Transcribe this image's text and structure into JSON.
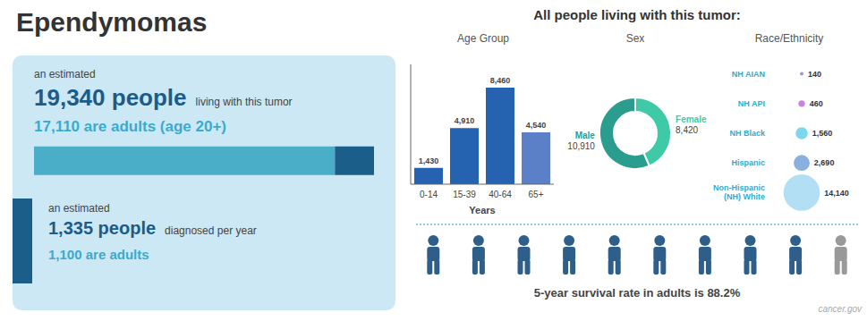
{
  "chart_data": [
    {
      "type": "bar",
      "title": "Ependymomas",
      "orientation": "horizontal",
      "stacked": true,
      "categories": [
        null
      ],
      "series": [
        {
          "values": [
            0.885
          ],
          "color": "#4aaec9"
        },
        {
          "values": [
            0.115
          ],
          "color": "#1b5e8a"
        }
      ],
      "xlim": [
        0,
        1
      ],
      "tick_labels": false,
      "annotations": [
        "an estimated",
        "19,340 people",
        "living with this tumor",
        "17,110 are adults (age 20+)",
        "an estimated",
        "1,335 people",
        "diagnosed per year",
        "1,100 are adults"
      ]
    },
    {
      "type": "bar",
      "title": "Age Group",
      "subtitle": "All people living with this tumor:",
      "categories": [
        "0-14",
        "15-39",
        "40-64",
        "65+"
      ],
      "values": [
        1430,
        4910,
        8460,
        4540
      ],
      "value_labels": [
        "1,430",
        "4,910",
        "8,460",
        "4,540"
      ],
      "colors": [
        "#2563b0",
        "#2563b0",
        "#2563b0",
        "#5b80c8"
      ],
      "xlabel": "Years",
      "ylim": [
        0,
        10500
      ],
      "data_labels": true,
      "tick_labels": "x"
    },
    {
      "type": "pie",
      "title": "Sex",
      "categories": [
        "Female",
        "Male"
      ],
      "values": [
        8420,
        10910
      ],
      "value_labels": [
        "8,420",
        "10,910"
      ],
      "colors": [
        "#3ec9a7",
        "#2a9d8f"
      ],
      "data_labels": true
    },
    {
      "type": "bubble",
      "title": "Race/Ethnicity",
      "categories": [
        "Non-Hispanic\n(NH) White",
        "Hispanic",
        "NH Black",
        "NH API",
        "NH AIAN"
      ],
      "values": [
        14140,
        2690,
        1560,
        460,
        140
      ],
      "value_labels": [
        "14,140",
        "2,690",
        "1,560",
        "460",
        "140"
      ],
      "colors": [
        "#b3dff5",
        "#8ab0e0",
        "#7dd8ec",
        "#d080e0",
        "#b090d0"
      ],
      "data_labels": true
    },
    {
      "type": "pictogram",
      "title": "5-year survival rate in adults is 88.2%",
      "values": [
        9,
        1
      ],
      "colors": [
        "#2e5f8a",
        "#999999"
      ],
      "annotations": [
        "cancer.gov"
      ]
    }
  ]
}
